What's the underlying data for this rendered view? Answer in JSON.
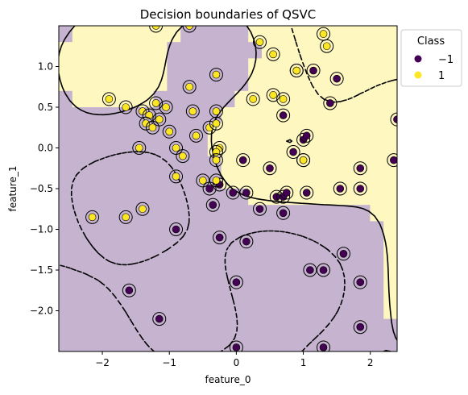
{
  "chart_data": {
    "type": "scatter",
    "title": "Decision boundaries of QSVC",
    "xlabel": "feature_0",
    "ylabel": "feature_1",
    "xlim": [
      -2.65,
      2.4
    ],
    "ylim": [
      -2.5,
      1.5
    ],
    "xticks": [
      -2,
      -1,
      0,
      1,
      2
    ],
    "xtick_labels": [
      "−2",
      "−1",
      "0",
      "1",
      "2"
    ],
    "yticks": [
      1.0,
      0.5,
      0.0,
      -0.5,
      -1.0,
      -1.5,
      -2.0
    ],
    "ytick_labels": [
      "1.0",
      "0.5",
      "0.0",
      "−0.5",
      "−1.0",
      "−1.5",
      "−2.0"
    ],
    "grid": false,
    "legend": {
      "title": "Class",
      "placement": "outside-top-right",
      "entries": [
        {
          "label": "−1",
          "color": "#440154"
        },
        {
          "label": "1",
          "color": "#fde725"
        }
      ]
    },
    "colors": {
      "region_neg": "#c5b3cf",
      "region_pos": "#fef7c0",
      "class_neg": "#440154",
      "class_pos": "#fde725"
    },
    "series": [
      {
        "name": "−1",
        "values": [
          [
            0.1,
            -0.15
          ],
          [
            0.5,
            -0.25
          ],
          [
            0.6,
            -0.6
          ],
          [
            0.7,
            -0.6
          ],
          [
            0.85,
            -0.05
          ],
          [
            1.0,
            -0.15
          ],
          [
            1.0,
            0.1
          ],
          [
            1.05,
            0.15
          ],
          [
            0.7,
            0.4
          ],
          [
            0.9,
            0.95
          ],
          [
            1.15,
            0.95
          ],
          [
            1.4,
            0.55
          ],
          [
            1.5,
            0.85
          ],
          [
            2.4,
            0.35
          ],
          [
            1.05,
            -0.55
          ],
          [
            0.75,
            -0.55
          ],
          [
            1.55,
            -0.5
          ],
          [
            1.85,
            -0.5
          ],
          [
            1.85,
            -0.25
          ],
          [
            2.35,
            -0.15
          ],
          [
            0.35,
            -0.75
          ],
          [
            0.15,
            -0.55
          ],
          [
            -0.05,
            -0.55
          ],
          [
            -0.25,
            -0.45
          ],
          [
            -0.4,
            -0.5
          ],
          [
            -0.35,
            -0.7
          ],
          [
            -0.25,
            -1.1
          ],
          [
            -0.9,
            -1.0
          ],
          [
            0.15,
            -1.15
          ],
          [
            0.7,
            -0.8
          ],
          [
            0.0,
            -1.65
          ],
          [
            1.1,
            -1.5
          ],
          [
            1.3,
            -1.5
          ],
          [
            1.6,
            -1.3
          ],
          [
            1.85,
            -1.65
          ],
          [
            1.85,
            -2.2
          ],
          [
            1.3,
            -2.45
          ],
          [
            0.0,
            -2.45
          ],
          [
            -1.15,
            -2.1
          ],
          [
            -1.6,
            -1.75
          ]
        ]
      },
      {
        "name": "1",
        "values": [
          [
            -1.2,
            0.55
          ],
          [
            -1.4,
            0.45
          ],
          [
            -1.3,
            0.4
          ],
          [
            -1.05,
            0.5
          ],
          [
            -1.15,
            0.35
          ],
          [
            -1.35,
            0.3
          ],
          [
            -1.25,
            0.25
          ],
          [
            -1.0,
            0.2
          ],
          [
            -0.6,
            0.15
          ],
          [
            -0.9,
            0.0
          ],
          [
            -0.65,
            0.45
          ],
          [
            -0.3,
            0.45
          ],
          [
            -0.4,
            0.25
          ],
          [
            -0.3,
            0.3
          ],
          [
            -0.25,
            0.0
          ],
          [
            -0.3,
            -0.05
          ],
          [
            -0.3,
            -0.15
          ],
          [
            -0.8,
            -0.1
          ],
          [
            -0.9,
            -0.35
          ],
          [
            -0.5,
            -0.4
          ],
          [
            -0.3,
            -0.4
          ],
          [
            -1.45,
            0.0
          ],
          [
            -1.65,
            0.5
          ],
          [
            -1.9,
            0.6
          ],
          [
            -2.15,
            -0.85
          ],
          [
            -1.65,
            -0.85
          ],
          [
            -1.4,
            -0.75
          ],
          [
            -0.3,
            0.9
          ],
          [
            -0.7,
            0.75
          ],
          [
            0.25,
            0.6
          ],
          [
            0.35,
            1.3
          ],
          [
            0.55,
            1.15
          ],
          [
            1.0,
            -0.15
          ],
          [
            0.9,
            0.95
          ],
          [
            1.3,
            1.4
          ],
          [
            1.35,
            1.25
          ],
          [
            -0.7,
            1.5
          ],
          [
            -1.2,
            1.5
          ],
          [
            0.55,
            0.65
          ],
          [
            0.7,
            0.6
          ]
        ]
      }
    ],
    "support_vector_markers": true,
    "contours": {
      "levels": [
        -1,
        0,
        1
      ],
      "boundary_style": "solid",
      "margin_style": "dashed"
    }
  }
}
